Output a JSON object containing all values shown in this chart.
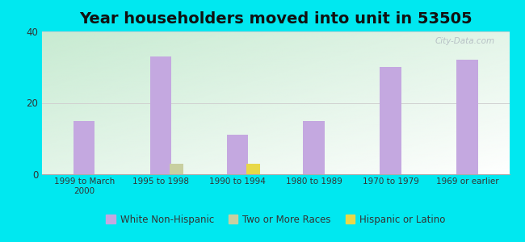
{
  "title": "Year householders moved into unit in 53505",
  "categories": [
    "1999 to March\n2000",
    "1995 to 1998",
    "1990 to 1994",
    "1980 to 1989",
    "1970 to 1979",
    "1969 or earlier"
  ],
  "series": {
    "White Non-Hispanic": {
      "values": [
        15,
        33,
        11,
        15,
        30,
        32
      ],
      "color": "#c4a8e0"
    },
    "Two or More Races": {
      "values": [
        0,
        3,
        0,
        0,
        0,
        0
      ],
      "color": "#c8cfa0"
    },
    "Hispanic or Latino": {
      "values": [
        0,
        0,
        3,
        0,
        0,
        0
      ],
      "color": "#e8d848"
    }
  },
  "ylim": [
    0,
    40
  ],
  "yticks": [
    0,
    20,
    40
  ],
  "outer_background": "#00e8f0",
  "title_fontsize": 14,
  "bar_width": 0.28,
  "small_bar_width": 0.18,
  "grid_color": "#d0d0d0",
  "watermark": "City-Data.com"
}
